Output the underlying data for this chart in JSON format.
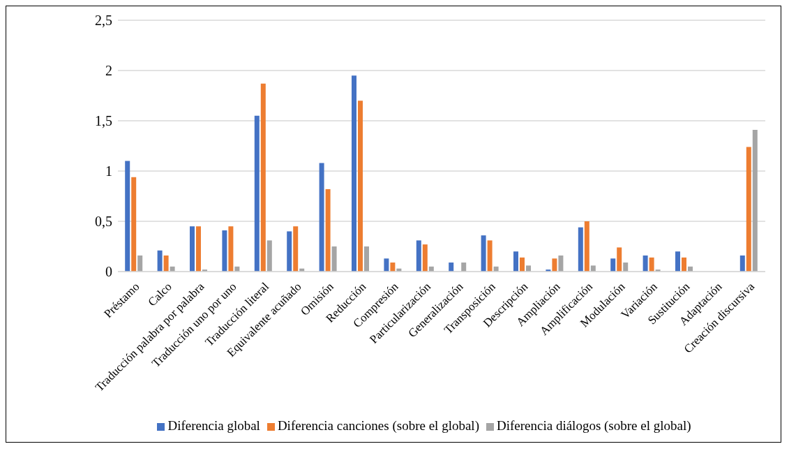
{
  "chart_data": {
    "type": "bar",
    "categories": [
      "Préstamo",
      "Calco",
      "Traducción palabra por palabra",
      "Traducción uno por uno",
      "Traducción literal",
      "Equivalente acuñado",
      "Omisión",
      "Reducción",
      "Compresión",
      "Particularización",
      "Generalización",
      "Transposición",
      "Descripción",
      "Ampliación",
      "Amplificación",
      "Modulación",
      "Variación",
      "Sustitución",
      "Adaptación",
      "Creación discursiva"
    ],
    "series": [
      {
        "name": "Diferencia global",
        "color": "#4472c4",
        "values": [
          1.1,
          0.21,
          0.45,
          0.41,
          1.55,
          0.4,
          1.08,
          1.95,
          0.13,
          0.31,
          0.09,
          0.36,
          0.2,
          0.02,
          0.44,
          0.13,
          0.16,
          0.2,
          0,
          0.16
        ]
      },
      {
        "name": "Diferencia canciones (sobre el global)",
        "color": "#ed7d31",
        "values": [
          0.94,
          0.16,
          0.45,
          0.45,
          1.87,
          0.45,
          0.82,
          1.7,
          0.09,
          0.27,
          0,
          0.31,
          0.14,
          0.13,
          0.5,
          0.24,
          0.14,
          0.14,
          0,
          1.24
        ]
      },
      {
        "name": "Diferencia diálogos (sobre el global)",
        "color": "#a5a5a5",
        "values": [
          0.16,
          0.05,
          0.02,
          0.05,
          0.31,
          0.03,
          0.25,
          0.25,
          0.03,
          0.05,
          0.09,
          0.05,
          0.06,
          0.16,
          0.06,
          0.09,
          0.02,
          0.05,
          0,
          1.41
        ]
      }
    ],
    "ylim": [
      0,
      2.5
    ],
    "yticks": [
      0,
      {
        "value": 0.5,
        "label": "0,5"
      },
      1,
      {
        "value": 1.5,
        "label": "1,5"
      },
      2,
      {
        "value": 2.5,
        "label": "2,5"
      }
    ],
    "grid": "y",
    "legend": "bottom"
  }
}
